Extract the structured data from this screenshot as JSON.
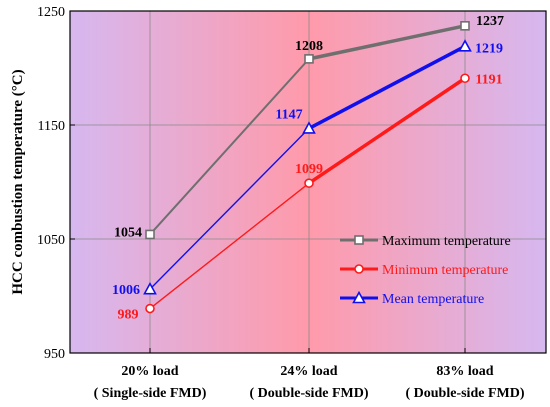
{
  "chart_data": {
    "type": "line",
    "ylabel": "HCC combustion temperature (°C)",
    "categories": [
      {
        "line1": "20% load",
        "line2": "( Single-side FMD)"
      },
      {
        "line1": "24% load",
        "line2": "( Double-side FMD)"
      },
      {
        "line1": "83% load",
        "line2": "( Double-side FMD)"
      }
    ],
    "ylim": [
      950,
      1250
    ],
    "yticks": [
      950,
      1050,
      1150,
      1250
    ],
    "grid": true,
    "legend_position": "bottom-right",
    "series": [
      {
        "name": "Maximum temperature",
        "values": [
          1054,
          1208,
          1237
        ],
        "color": "#6f6f6f",
        "label_color": "#000000",
        "marker": "square"
      },
      {
        "name": "Minimum temperature",
        "values": [
          989,
          1099,
          1191
        ],
        "color": "#ff1a1a",
        "label_color": "#ff1a1a",
        "marker": "circle"
      },
      {
        "name": "Mean temperature",
        "values": [
          1006,
          1147,
          1219
        ],
        "color": "#1010ee",
        "label_color": "#1010ee",
        "marker": "triangle"
      }
    ]
  }
}
